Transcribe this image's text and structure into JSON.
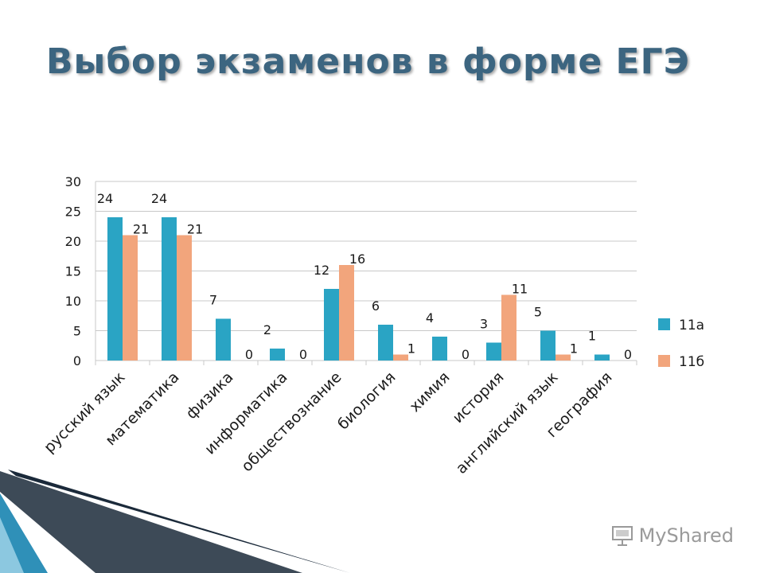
{
  "slide": {
    "title": "Выбор экзаменов в форме ЕГЭ",
    "watermark": "MyShared"
  },
  "colors": {
    "title": "#3c6580",
    "series_11a": "#2aa4c4",
    "series_11b": "#f2a57c",
    "gridline": "#c8c8c8",
    "deco_dark": "#1b2a3a",
    "deco_blue": "#2f90b8"
  },
  "icons": {
    "watermark": "projector-screen-icon"
  },
  "chart_data": {
    "type": "bar",
    "categories": [
      "русский язык",
      "математика",
      "физика",
      "информатика",
      "обществознание",
      "биология",
      "химия",
      "история",
      "английский язык",
      "география"
    ],
    "series": [
      {
        "name": "11а",
        "values": [
          24,
          24,
          7,
          2,
          12,
          6,
          4,
          3,
          5,
          1
        ]
      },
      {
        "name": "11б",
        "values": [
          21,
          21,
          0,
          0,
          16,
          1,
          0,
          11,
          1,
          0
        ]
      }
    ],
    "ylim": [
      0,
      30
    ],
    "yticks": [
      0,
      5,
      10,
      15,
      20,
      25,
      30
    ],
    "grid": true,
    "data_labels": true,
    "legend": "right"
  }
}
